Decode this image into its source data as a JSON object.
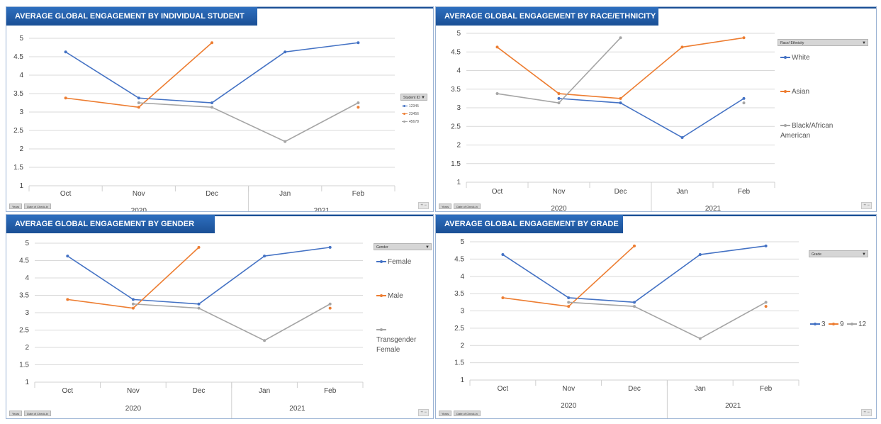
{
  "field_buttons": [
    "Years",
    "Date of Check-in"
  ],
  "zoom_label": "+ −",
  "chart_data": [
    {
      "type": "line",
      "title": "AVERAGE GLOBAL ENGAGEMENT BY INDIVIDUAL STUDENT",
      "categories": [
        "Oct",
        "Nov",
        "Dec",
        "Jan",
        "Feb"
      ],
      "groups": [
        {
          "label": "2020",
          "span": 3
        },
        {
          "label": "2021",
          "span": 2
        }
      ],
      "ylim": [
        1,
        5
      ],
      "yticks": [
        "1",
        "1.5",
        "2",
        "2.5",
        "3",
        "3.5",
        "4",
        "4.5",
        "5"
      ],
      "legend_title": "Student ID",
      "legend_style": "small",
      "series": [
        {
          "name": "12345",
          "color": "#4472c4",
          "values": [
            4.63,
            3.38,
            3.25,
            4.63,
            4.88
          ]
        },
        {
          "name": "23456",
          "color": "#ed7d31",
          "values": [
            3.38,
            3.13,
            4.88,
            null,
            3.13
          ]
        },
        {
          "name": "45678",
          "color": "#a5a5a5",
          "values": [
            null,
            3.25,
            3.13,
            2.2,
            3.25
          ]
        }
      ]
    },
    {
      "type": "line",
      "title": "AVERAGE GLOBAL ENGAGEMENT BY RACE/ETHNICITY",
      "categories": [
        "Oct",
        "Nov",
        "Dec",
        "Jan",
        "Feb"
      ],
      "groups": [
        {
          "label": "2020",
          "span": 3
        },
        {
          "label": "2021",
          "span": 2
        }
      ],
      "ylim": [
        1,
        5
      ],
      "yticks": [
        "1",
        "1.5",
        "2",
        "2.5",
        "3",
        "3.5",
        "4",
        "4.5",
        "5"
      ],
      "legend_title": "Race/ Ethnicity",
      "legend_style": "vertical",
      "series": [
        {
          "name": "White",
          "color": "#4472c4",
          "values": [
            null,
            3.25,
            3.13,
            2.2,
            3.25
          ]
        },
        {
          "name": "Asian",
          "color": "#ed7d31",
          "values": [
            4.63,
            3.38,
            3.25,
            4.63,
            4.88
          ]
        },
        {
          "name": "Black/African American",
          "color": "#a5a5a5",
          "values": [
            3.38,
            3.13,
            4.88,
            null,
            3.13
          ]
        }
      ]
    },
    {
      "type": "line",
      "title": "AVERAGE GLOBAL ENGAGEMENT BY GENDER",
      "categories": [
        "Oct",
        "Nov",
        "Dec",
        "Jan",
        "Feb"
      ],
      "groups": [
        {
          "label": "2020",
          "span": 3
        },
        {
          "label": "2021",
          "span": 2
        }
      ],
      "ylim": [
        1,
        5
      ],
      "yticks": [
        "1",
        "1.5",
        "2",
        "2.5",
        "3",
        "3.5",
        "4",
        "4.5",
        "5"
      ],
      "legend_title": "Gender",
      "legend_style": "vertical",
      "series": [
        {
          "name": "Female",
          "color": "#4472c4",
          "values": [
            4.63,
            3.38,
            3.25,
            4.63,
            4.88
          ]
        },
        {
          "name": "Male",
          "color": "#ed7d31",
          "values": [
            3.38,
            3.13,
            4.88,
            null,
            3.13
          ]
        },
        {
          "name": "Transgender Female",
          "color": "#a5a5a5",
          "values": [
            null,
            3.25,
            3.13,
            2.2,
            3.25
          ]
        }
      ]
    },
    {
      "type": "line",
      "title": "AVERAGE GLOBAL ENGAGEMENT BY GRADE",
      "categories": [
        "Oct",
        "Nov",
        "Dec",
        "Jan",
        "Feb"
      ],
      "groups": [
        {
          "label": "2020",
          "span": 3
        },
        {
          "label": "2021",
          "span": 2
        }
      ],
      "ylim": [
        1,
        5
      ],
      "yticks": [
        "1",
        "1.5",
        "2",
        "2.5",
        "3",
        "3.5",
        "4",
        "4.5",
        "5"
      ],
      "legend_title": "Grade",
      "legend_style": "horizontal",
      "series": [
        {
          "name": "3",
          "color": "#4472c4",
          "values": [
            4.63,
            3.38,
            3.25,
            4.63,
            4.88
          ]
        },
        {
          "name": "9",
          "color": "#ed7d31",
          "values": [
            3.38,
            3.13,
            4.88,
            null,
            3.13
          ]
        },
        {
          "name": "12",
          "color": "#a5a5a5",
          "values": [
            null,
            3.25,
            3.13,
            2.2,
            3.25
          ]
        }
      ]
    }
  ]
}
